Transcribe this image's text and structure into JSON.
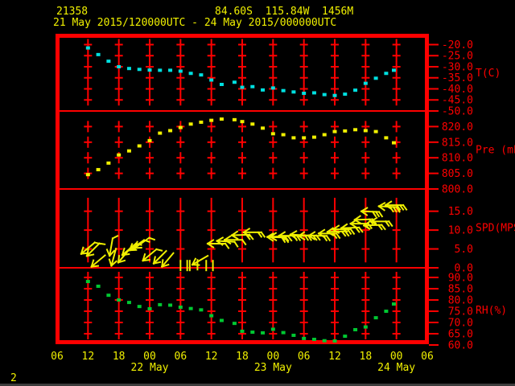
{
  "header": {
    "station_id": "21358",
    "location": "84.60S  115.84W  1456M",
    "period": "21 May 2015/120000UTC - 24 May 2015/000000UTC"
  },
  "page_number": "2",
  "colors": {
    "background": "#000000",
    "axis": "#ff0000",
    "header_text": "#f0f000",
    "temperature": "#00e0e0",
    "pressure": "#f0f000",
    "wind": "#f0f000",
    "humidity": "#00c832"
  },
  "chart_data": {
    "type": "meteogram",
    "x_axis": {
      "start": "21 May 2015 06UTC",
      "hours_span": 72,
      "tick_step": 6,
      "hour_labels": [
        "06",
        "12",
        "18",
        "00",
        "06",
        "12",
        "18",
        "00",
        "06",
        "12",
        "18",
        "00",
        "06"
      ],
      "day_labels": [
        {
          "label": "22 May",
          "t": 18
        },
        {
          "label": "23 May",
          "t": 42
        },
        {
          "label": "24 May",
          "t": 66
        }
      ]
    },
    "panels": [
      {
        "key": "temperature",
        "label": "T(C)",
        "type": "scatter",
        "color": "#00e0e0",
        "ylim": [
          -50,
          -15.1
        ],
        "ticks": [
          -20,
          -25,
          -30,
          -35,
          -40,
          -45,
          -50
        ],
        "tick_labels": [
          "-20.0",
          "-25.0",
          "-30.0",
          "-35.0",
          "-40.0",
          "-45.0",
          "-50.0"
        ],
        "grid": [
          -20,
          -25,
          -30,
          -35,
          -40,
          -45
        ],
        "dash": [],
        "label_v": -33,
        "series": {
          "t": [
            6,
            8,
            10,
            12,
            14,
            16,
            18,
            20,
            22,
            24,
            26,
            28,
            30,
            32,
            34.5,
            36,
            38,
            40,
            42,
            44,
            46,
            48,
            50,
            52,
            54,
            56,
            58,
            60,
            62,
            64,
            65.5
          ],
          "values": [
            -21.5,
            -24.5,
            -27.5,
            -30.0,
            -30.8,
            -31.2,
            -31.5,
            -31.6,
            -31.6,
            -32.0,
            -33.0,
            -33.7,
            -36.0,
            -38.0,
            -37.0,
            -39.3,
            -39.0,
            -40.5,
            -39.6,
            -40.8,
            -41.4,
            -42.0,
            -41.8,
            -42.6,
            -43.0,
            -42.4,
            -40.6,
            -37.5,
            -35.2,
            -33.0,
            -31.6
          ]
        }
      },
      {
        "key": "pressure",
        "label": "Pre (mb)",
        "type": "scatter",
        "color": "#f0f000",
        "ylim": [
          800,
          825
        ],
        "ticks": [
          820,
          815,
          810,
          805,
          800
        ],
        "tick_labels": [
          "820.0",
          "815.0",
          "810.0",
          "805.0",
          "800.0"
        ],
        "grid": [
          820,
          815,
          810,
          805
        ],
        "dash": [],
        "label_v": 812.5,
        "series": {
          "t": [
            6,
            8,
            10,
            12,
            14,
            16,
            18,
            20,
            22,
            24,
            26,
            28,
            30,
            32,
            34.5,
            36,
            38,
            40,
            42,
            44,
            46,
            48,
            50,
            52,
            54,
            56,
            58,
            60,
            62,
            64,
            65.5
          ],
          "values": [
            804.6,
            806.2,
            808.3,
            810.9,
            812.2,
            813.8,
            815.5,
            817.9,
            818.7,
            819.7,
            820.8,
            821.4,
            822.0,
            822.4,
            822.2,
            821.6,
            820.8,
            819.5,
            817.7,
            817.4,
            816.4,
            816.4,
            816.6,
            817.4,
            818.4,
            818.6,
            819.0,
            818.7,
            818.4,
            816.4,
            814.8
          ]
        }
      },
      {
        "key": "wind",
        "label": "SPD(MPS)",
        "type": "wind",
        "color": "#f0f000",
        "ylim": [
          0,
          20.9
        ],
        "ticks": [
          15,
          10,
          5,
          0
        ],
        "tick_labels": [
          "15.0",
          "10.0",
          "5.0",
          "0.0"
        ],
        "grid": [
          5,
          10,
          15
        ],
        "dash": [
          2.5,
          7.5,
          12.5,
          17.5
        ],
        "label_v": 10.6,
        "arrows": [
          {
            "t": 6,
            "speed": 5.2,
            "dir": 140
          },
          {
            "t": 7,
            "speed": 4.8,
            "dir": 135
          },
          {
            "t": 8,
            "speed": 1.8,
            "dir": 140
          },
          {
            "t": 10.5,
            "speed": 5.5,
            "dir": 100
          },
          {
            "t": 11,
            "speed": 2.8,
            "dir": 105
          },
          {
            "t": 13,
            "speed": 3.2,
            "dir": 130
          },
          {
            "t": 14,
            "speed": 4.9,
            "dir": 140
          },
          {
            "t": 15.5,
            "speed": 6.0,
            "dir": 145
          },
          {
            "t": 16.5,
            "speed": 6.6,
            "dir": 145
          },
          {
            "t": 18,
            "speed": 3.4,
            "dir": 140
          },
          {
            "t": 20,
            "speed": 2.8,
            "dir": 135
          },
          {
            "t": 21.5,
            "speed": 2.1,
            "dir": 130
          },
          {
            "t": 24,
            "speed": 0.6,
            "dir": 90,
            "calm": true
          },
          {
            "t": 25.3,
            "speed": 0.6,
            "dir": 90,
            "calm": true
          },
          {
            "t": 25.8,
            "speed": 0.6,
            "dir": 90,
            "calm": true
          },
          {
            "t": 27.3,
            "speed": 0.8,
            "dir": 90,
            "calm": true
          },
          {
            "t": 27.8,
            "speed": 2.0,
            "dir": 150
          },
          {
            "t": 29,
            "speed": 0.6,
            "dir": 90,
            "calm": true
          },
          {
            "t": 30.3,
            "speed": 0.6,
            "dir": 90,
            "calm": true
          },
          {
            "t": 31,
            "speed": 6.4,
            "dir": 180
          },
          {
            "t": 32.8,
            "speed": 7.0,
            "dir": 183
          },
          {
            "t": 34.3,
            "speed": 7.4,
            "dir": 180
          },
          {
            "t": 35.7,
            "speed": 8.7,
            "dir": 178
          },
          {
            "t": 38,
            "speed": 9.4,
            "dir": 180
          },
          {
            "t": 42.6,
            "speed": 8.1,
            "dir": 182
          },
          {
            "t": 43.2,
            "speed": 8.3,
            "dir": 178
          },
          {
            "t": 44.9,
            "speed": 8.5,
            "dir": 180
          },
          {
            "t": 47.1,
            "speed": 8.7,
            "dir": 183
          },
          {
            "t": 48.7,
            "speed": 8.5,
            "dir": 178
          },
          {
            "t": 50.7,
            "speed": 8.5,
            "dir": 181
          },
          {
            "t": 52.6,
            "speed": 9.1,
            "dir": 180
          },
          {
            "t": 54.3,
            "speed": 9.6,
            "dir": 178
          },
          {
            "t": 55.4,
            "speed": 10.2,
            "dir": 180
          },
          {
            "t": 57,
            "speed": 10.6,
            "dir": 178
          },
          {
            "t": 58.8,
            "speed": 11.7,
            "dir": 180
          },
          {
            "t": 59.6,
            "speed": 12.8,
            "dir": 178
          },
          {
            "t": 60.9,
            "speed": 14.9,
            "dir": 182
          },
          {
            "t": 61.4,
            "speed": 11.3,
            "dir": 178
          },
          {
            "t": 62.8,
            "speed": 12.3,
            "dir": 180
          },
          {
            "t": 64.3,
            "speed": 16.2,
            "dir": 183
          },
          {
            "t": 65.6,
            "speed": 16.6,
            "dir": 180
          }
        ]
      },
      {
        "key": "humidity",
        "label": "RH(%)",
        "type": "scatter",
        "color": "#00c832",
        "ylim": [
          60,
          94.3
        ],
        "ticks": [
          90,
          85,
          80,
          75,
          70,
          65,
          60
        ],
        "tick_labels": [
          "90.0",
          "85.0",
          "80.0",
          "75.0",
          "70.0",
          "65.0",
          "60.0"
        ],
        "grid": [
          90,
          85,
          80,
          75,
          70,
          65
        ],
        "dash": [],
        "label_v": 75.3,
        "series": {
          "t": [
            6,
            8,
            10,
            12,
            14,
            16,
            18,
            20,
            22,
            24,
            26,
            28,
            30,
            32,
            34.5,
            36,
            38,
            40,
            42,
            44,
            46,
            48,
            50,
            52,
            54,
            56,
            58,
            60,
            62,
            64,
            65.5
          ],
          "values": [
            88.2,
            86.1,
            82.1,
            80.0,
            78.9,
            77.1,
            76.1,
            77.9,
            77.7,
            76.8,
            76.2,
            75.6,
            73.0,
            70.9,
            69.6,
            66.1,
            65.7,
            65.4,
            67.0,
            65.5,
            64.3,
            62.9,
            62.5,
            61.9,
            61.8,
            63.9,
            66.8,
            68.0,
            72.1,
            75.0,
            78.2
          ]
        }
      }
    ]
  }
}
